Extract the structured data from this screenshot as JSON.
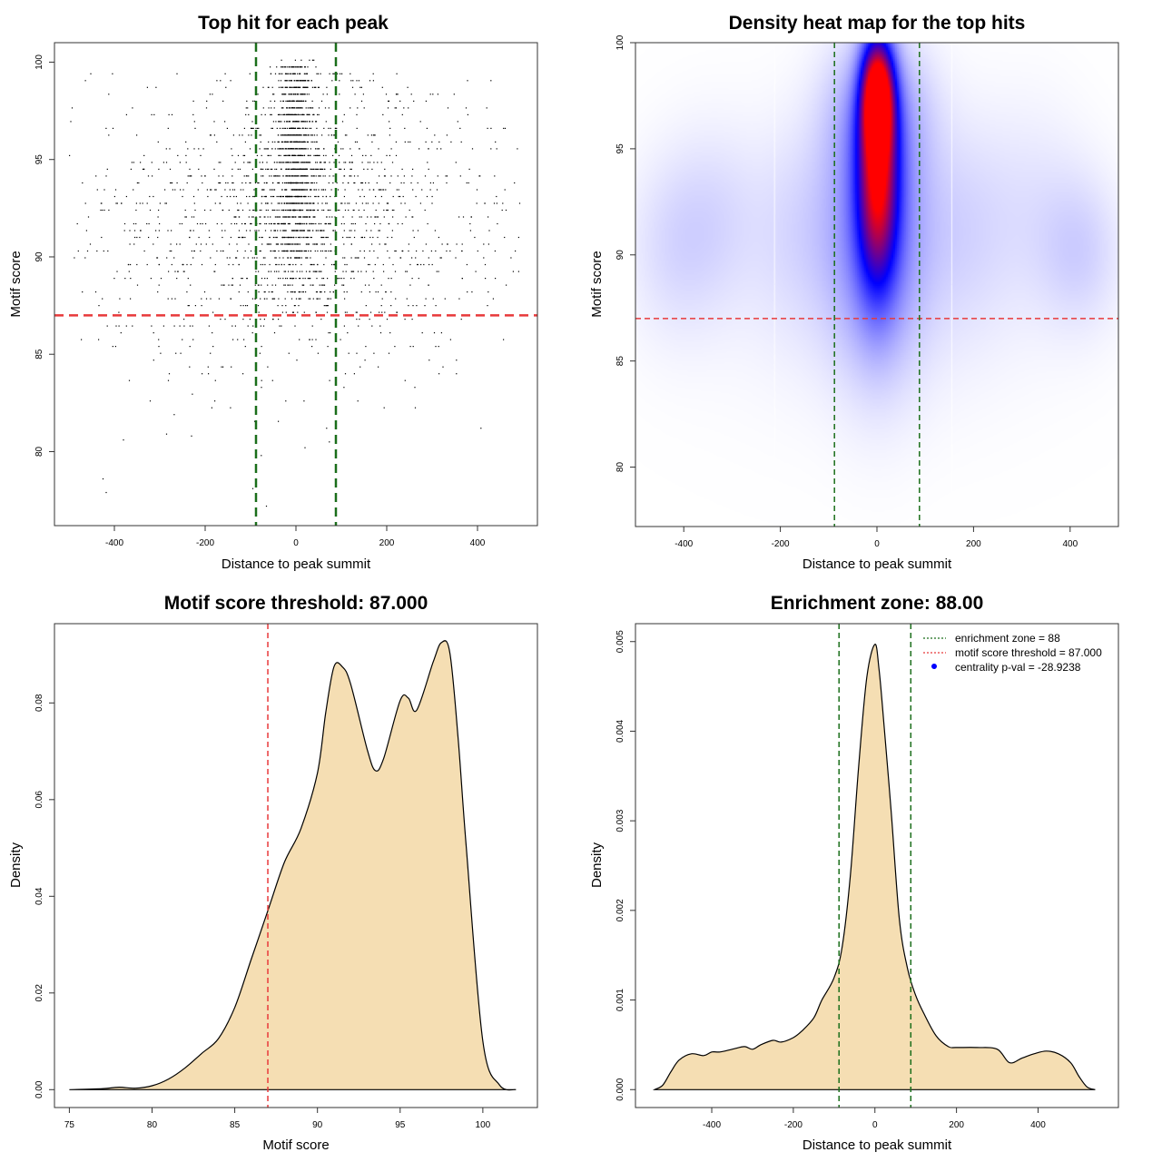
{
  "colors": {
    "background": "#ffffff",
    "points": "#000000",
    "threshold_line": "#e8393a",
    "zone_line": "#1a6e1a",
    "density_fill": "#f5deb3",
    "heat_low": "#ffffff",
    "heat_mid": "#0000ff",
    "heat_high": "#ff0000"
  },
  "chart_data": [
    {
      "type": "scatter",
      "title": "Top hit for each peak",
      "xlabel": "Distance to peak summit",
      "ylabel": "Motif score",
      "xlim": [
        -532,
        532
      ],
      "ylim": [
        76.2,
        101.0
      ],
      "xticks": [
        -400,
        -200,
        0,
        200,
        400
      ],
      "yticks": [
        80,
        85,
        90,
        95,
        100
      ],
      "threshold_y": 87,
      "zone_x": [
        -88,
        88
      ],
      "clusters": [
        {
          "cx": 0,
          "cy": 95.5,
          "sx": 18,
          "sy": 3.0,
          "n": 900,
          "ymin": 87,
          "ymax": 100
        },
        {
          "cx": 0,
          "cy": 93.0,
          "sx": 48,
          "sy": 3.2,
          "n": 650,
          "ymin": 86.5,
          "ymax": 100
        },
        {
          "cx": 0,
          "cy": 92.0,
          "sx": 230,
          "sy": 3.8,
          "n": 1500,
          "ymin": 77.5,
          "ymax": 99.6
        }
      ],
      "outliers": [
        {
          "x": -425,
          "y": 78.6
        },
        {
          "x": -418,
          "y": 77.9
        },
        {
          "x": -380,
          "y": 80.6
        },
        {
          "x": -285,
          "y": 80.9
        },
        {
          "x": -230,
          "y": 80.8
        },
        {
          "x": 20,
          "y": 80.2
        },
        {
          "x": -95,
          "y": 78.1
        },
        {
          "x": -65,
          "y": 77.2
        }
      ]
    },
    {
      "type": "heatmap",
      "title": "Density heat map for the top hits",
      "xlabel": "Distance to peak summit",
      "ylabel": "Motif score",
      "xlim": [
        -500,
        500
      ],
      "ylim": [
        77.2,
        100.0
      ],
      "xticks": [
        -400,
        -200,
        0,
        200,
        400
      ],
      "yticks": [
        80,
        85,
        90,
        95,
        100
      ],
      "threshold_y": 87,
      "zone_x": [
        -88,
        88
      ],
      "faint_lines_x": [
        -212,
        155
      ],
      "blobs": [
        {
          "x": 0,
          "y": 97.5,
          "sx": 22,
          "sy": 1.8,
          "w": 1.3
        },
        {
          "x": 0,
          "y": 93.5,
          "sx": 28,
          "sy": 3.2,
          "w": 0.95
        },
        {
          "x": 0,
          "y": 91.5,
          "sx": 65,
          "sy": 4.5,
          "w": 0.35
        },
        {
          "x": -40,
          "y": 96.8,
          "sx": 60,
          "sy": 2.4,
          "w": 0.1
        },
        {
          "x": 40,
          "y": 96.8,
          "sx": 60,
          "sy": 2.4,
          "w": 0.1
        },
        {
          "x": -420,
          "y": 90.5,
          "sx": 70,
          "sy": 3.0,
          "w": 0.08
        },
        {
          "x": 420,
          "y": 90.2,
          "sx": 60,
          "sy": 2.5,
          "w": 0.1
        },
        {
          "x": -330,
          "y": 92.0,
          "sx": 70,
          "sy": 3.0,
          "w": 0.06
        },
        {
          "x": -150,
          "y": 91.5,
          "sx": 70,
          "sy": 3.5,
          "w": 0.07
        },
        {
          "x": 170,
          "y": 91.5,
          "sx": 70,
          "sy": 3.5,
          "w": 0.07
        },
        {
          "x": 320,
          "y": 92.5,
          "sx": 80,
          "sy": 3.5,
          "w": 0.05
        },
        {
          "x": 0,
          "y": 89.0,
          "sx": 250,
          "sy": 4.5,
          "w": 0.05
        }
      ]
    },
    {
      "type": "area",
      "title": "Motif score threshold: 87.000",
      "xlabel": "Motif score",
      "ylabel": "Density",
      "xlim": [
        74.1,
        103.3
      ],
      "ylim": [
        -0.0037,
        0.0964
      ],
      "xticks": [
        75,
        80,
        85,
        90,
        95,
        100
      ],
      "yticks": [
        0.0,
        0.02,
        0.04,
        0.06,
        0.08
      ],
      "ytick_labels": [
        "0.00",
        "0.02",
        "0.04",
        "0.06",
        "0.08"
      ],
      "threshold_x": 87,
      "x": [
        75,
        77,
        78,
        79,
        80,
        81,
        82,
        83,
        84,
        85,
        86,
        87,
        88,
        89,
        90,
        90.5,
        91,
        91.5,
        92,
        93,
        93.5,
        94,
        95,
        95.5,
        96,
        97,
        97.5,
        98,
        98.5,
        99,
        100,
        101,
        102
      ],
      "y": [
        0,
        0.0002,
        0.0005,
        0.0003,
        0.0008,
        0.0022,
        0.0045,
        0.0075,
        0.0105,
        0.017,
        0.027,
        0.037,
        0.047,
        0.054,
        0.0655,
        0.078,
        0.0875,
        0.0875,
        0.084,
        0.0705,
        0.066,
        0.0685,
        0.0805,
        0.081,
        0.0785,
        0.0885,
        0.0925,
        0.0905,
        0.073,
        0.05,
        0.01,
        0.001,
        0
      ]
    },
    {
      "type": "area",
      "title": "Enrichment zone: 88.00",
      "xlabel": "Distance to peak summit",
      "ylabel": "Density",
      "xlim": [
        -587,
        597
      ],
      "ylim": [
        -0.0002,
        0.0052
      ],
      "xticks": [
        -400,
        -200,
        0,
        200,
        400
      ],
      "yticks": [
        0.0,
        0.001,
        0.002,
        0.003,
        0.004,
        0.005
      ],
      "ytick_labels": [
        "0.000",
        "0.001",
        "0.002",
        "0.003",
        "0.004",
        "0.005"
      ],
      "zone_x": [
        -88,
        88
      ],
      "x": [
        -540,
        -520,
        -500,
        -480,
        -450,
        -420,
        -400,
        -380,
        -350,
        -320,
        -300,
        -280,
        -250,
        -230,
        -200,
        -180,
        -150,
        -130,
        -100,
        -80,
        -60,
        -40,
        -20,
        0,
        10,
        20,
        40,
        60,
        80,
        100,
        120,
        150,
        180,
        200,
        250,
        300,
        330,
        360,
        390,
        420,
        450,
        480,
        500,
        520,
        540
      ],
      "y": [
        0,
        5e-05,
        0.0002,
        0.00033,
        0.0004,
        0.00038,
        0.00042,
        0.00042,
        0.00045,
        0.00048,
        0.00045,
        0.0005,
        0.00055,
        0.00053,
        0.00058,
        0.00065,
        0.0008,
        0.001,
        0.00125,
        0.0016,
        0.0024,
        0.0036,
        0.0046,
        0.00497,
        0.0047,
        0.0042,
        0.0031,
        0.0019,
        0.00135,
        0.00105,
        0.00085,
        0.0006,
        0.00048,
        0.00047,
        0.00047,
        0.00045,
        0.0003,
        0.00035,
        0.0004,
        0.00043,
        0.0004,
        0.0003,
        0.00015,
        3e-05,
        0
      ],
      "legend": {
        "entries": [
          {
            "label": "enrichment zone = 88",
            "color": "#1a6e1a",
            "style": "dotted-line"
          },
          {
            "label": "motif score threshold = 87.000",
            "color": "#e8393a",
            "style": "dotted-line"
          },
          {
            "label": "centrality p-val = -28.9238",
            "color": "#0000ff",
            "style": "point"
          }
        ]
      }
    }
  ]
}
